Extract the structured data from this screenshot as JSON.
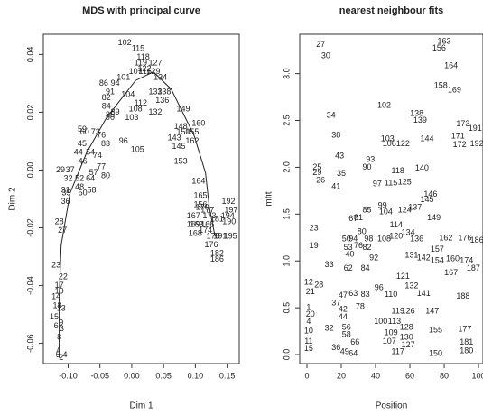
{
  "chart_data": [
    {
      "type": "scatter",
      "title": "MDS with principal curve",
      "x_label": "Dim 1",
      "y_label": "Dim 2",
      "xlim": [
        -0.139,
        0.169
      ],
      "ylim": [
        -0.067,
        0.047
      ],
      "xticks": [
        {
          "value": -0.1,
          "label": "-0.10"
        },
        -0.05,
        {
          "value": 0,
          "label": "0.00"
        },
        0.05,
        {
          "value": 0.1,
          "label": "0.10"
        },
        0.15
      ],
      "yticks": [
        -0.06,
        -0.04,
        -0.02,
        {
          "value": 0,
          "label": "0.00"
        },
        0.02,
        0.04
      ],
      "series": [
        {
          "color": "#222222",
          "labels": [
            "102",
            "115",
            "118",
            "119",
            "127",
            "122",
            "129",
            "134",
            "101",
            "107",
            "116",
            "86",
            "94",
            "133",
            "138",
            "91",
            "82",
            "104",
            "112",
            "136",
            "84",
            "108",
            "132",
            "149",
            "89",
            "103",
            "85",
            "90",
            "160",
            "148",
            "150",
            "155",
            "143",
            "162",
            "96",
            "59",
            "73",
            "60",
            "76",
            "83",
            "45",
            "105",
            "145",
            "153",
            "44",
            "54",
            "74",
            "46",
            "77",
            "80",
            "57",
            "52",
            "64",
            "58",
            "29",
            "37",
            "32",
            "31",
            "39",
            "36",
            "48",
            "50",
            "164",
            "165",
            "156",
            "170",
            "177",
            "169",
            "192",
            "197",
            "167",
            "173",
            "181",
            "194",
            "190",
            "163",
            "166",
            "168",
            "174",
            "178",
            "191",
            "195",
            "176",
            "182",
            "186",
            "28",
            "27",
            "23",
            "22",
            "17",
            "19",
            "14",
            "18",
            "13",
            "9",
            "6",
            "3",
            "8",
            "15",
            "7",
            "5",
            "2",
            "4"
          ],
          "x": [
            -0.011,
            0.01,
            0.018,
            0.014,
            0.037,
            0.02,
            0.034,
            0.045,
            -0.013,
            0.006,
            0.021,
            -0.044,
            -0.026,
            0.037,
            0.051,
            -0.034,
            -0.04,
            -0.006,
            0.014,
            0.048,
            -0.04,
            0.006,
            0.037,
            0.081,
            -0.026,
            0.0,
            -0.034,
            -0.034,
            0.105,
            0.077,
            0.081,
            0.095,
            0.067,
            0.095,
            -0.013,
            -0.078,
            -0.057,
            -0.074,
            -0.048,
            -0.041,
            -0.078,
            0.009,
            0.074,
            0.077,
            -0.084,
            -0.065,
            -0.054,
            -0.077,
            -0.048,
            -0.041,
            -0.06,
            -0.082,
            -0.065,
            -0.063,
            -0.112,
            -0.097,
            -0.1,
            -0.104,
            -0.103,
            -0.104,
            -0.082,
            -0.077,
            0.105,
            0.108,
            0.108,
            0.111,
            0.119,
            0.097,
            0.152,
            0.156,
            0.097,
            0.122,
            0.134,
            0.151,
            0.153,
            0.102,
            0.119,
            0.1,
            0.116,
            0.128,
            0.139,
            0.155,
            0.125,
            0.134,
            0.134,
            -0.114,
            -0.109,
            -0.119,
            -0.108,
            -0.114,
            -0.114,
            -0.119,
            -0.117,
            -0.111,
            -0.111,
            -0.119,
            -0.11,
            -0.114,
            -0.122,
            -0.116,
            -0.116,
            -0.111,
            -0.105
          ],
          "values": [
            0.044,
            0.042,
            0.039,
            0.037,
            0.037,
            0.035,
            0.034,
            0.032,
            0.032,
            0.034,
            0.034,
            0.03,
            0.03,
            0.027,
            0.027,
            0.027,
            0.025,
            0.026,
            0.023,
            0.024,
            0.022,
            0.021,
            0.02,
            0.021,
            0.02,
            0.018,
            0.019,
            0.018,
            0.016,
            0.015,
            0.013,
            0.013,
            0.011,
            0.01,
            0.01,
            0.014,
            0.013,
            0.013,
            0.012,
            0.009,
            0.009,
            0.007,
            0.008,
            0.003,
            0.006,
            0.006,
            0.005,
            0.003,
            0.001,
            -0.002,
            -0.001,
            -0.003,
            -0.003,
            -0.007,
            0.0,
            0.0,
            -0.003,
            -0.007,
            -0.008,
            -0.011,
            -0.006,
            -0.008,
            -0.004,
            -0.009,
            -0.012,
            -0.013,
            -0.014,
            -0.019,
            -0.011,
            -0.014,
            -0.016,
            -0.016,
            -0.017,
            -0.016,
            -0.018,
            -0.019,
            -0.019,
            -0.022,
            -0.021,
            -0.023,
            -0.023,
            -0.023,
            -0.026,
            -0.029,
            -0.031,
            -0.018,
            -0.021,
            -0.033,
            -0.037,
            -0.04,
            -0.042,
            -0.044,
            -0.047,
            -0.048,
            -0.053,
            -0.054,
            -0.055,
            -0.058,
            -0.051,
            -0.062,
            -0.064,
            -0.065,
            -0.064
          ]
        }
      ],
      "curve": {
        "color": "#222222",
        "x": [
          -0.114,
          -0.114,
          -0.111,
          -0.097,
          -0.071,
          -0.04,
          0.006,
          0.034,
          0.062,
          0.098,
          0.116,
          0.122,
          0.131
        ],
        "values": [
          -0.065,
          -0.044,
          -0.026,
          -0.008,
          0.006,
          0.018,
          0.031,
          0.034,
          0.028,
          0.012,
          -0.001,
          -0.013,
          -0.023
        ]
      }
    },
    {
      "type": "scatter",
      "title": "nearest neighbour fits",
      "x_label": "Position",
      "y_label": "mfit",
      "xlim": [
        -4.2,
        102.6
      ],
      "ylim": [
        -0.096,
        3.42
      ],
      "xticks": [
        0,
        20,
        40,
        60,
        80,
        100
      ],
      "yticks": [
        {
          "value": 0,
          "label": "0.0"
        },
        0.5,
        {
          "value": 1,
          "label": "1.0"
        },
        1.5,
        {
          "value": 2,
          "label": "2.0"
        },
        2.5,
        {
          "value": 3,
          "label": "3.0"
        }
      ],
      "series": [
        {
          "color": "#222222",
          "labels": [
            "27",
            "30",
            "163",
            "156",
            "164",
            "158",
            "169",
            "102",
            "138",
            "139",
            "173",
            "191",
            "171",
            "192",
            "172",
            "34",
            "38",
            "103",
            "106",
            "122",
            "144",
            "43",
            "93",
            "90",
            "118",
            "140",
            "25",
            "29",
            "26",
            "35",
            "41",
            "97",
            "115",
            "125",
            "146",
            "145",
            "99",
            "104",
            "124",
            "137",
            "85",
            "67",
            "81",
            "149",
            "23",
            "114",
            "80",
            "50",
            "94",
            "98",
            "108",
            "120",
            "134",
            "136",
            "162",
            "176",
            "186",
            "19",
            "53",
            "76",
            "82",
            "157",
            "40",
            "92",
            "131",
            "142",
            "154",
            "160",
            "174",
            "33",
            "62",
            "84",
            "167",
            "187",
            "121",
            "12",
            "28",
            "96",
            "132",
            "21",
            "47",
            "63",
            "83",
            "110",
            "141",
            "188",
            "37",
            "42",
            "78",
            "119",
            "126",
            "147",
            "1",
            "20",
            "44",
            "100",
            "113",
            "4",
            "32",
            "56",
            "128",
            "155",
            "177",
            "10",
            "58",
            "109",
            "130",
            "11",
            "66",
            "107",
            "127",
            "181",
            "15",
            "36",
            "49",
            "64",
            "117",
            "150",
            "180"
          ],
          "x": [
            8,
            11,
            80,
            77,
            84,
            78,
            86,
            45,
            64,
            66,
            91,
            98,
            88,
            99,
            89,
            14,
            17,
            47,
            48,
            56,
            70,
            19,
            37,
            35,
            53,
            67,
            6,
            6,
            8,
            20,
            17,
            41,
            49,
            57,
            72,
            70,
            44,
            46,
            57,
            63,
            35,
            27,
            30,
            74,
            4,
            52,
            32,
            23,
            27,
            36,
            45,
            52,
            59,
            64,
            81,
            92,
            99,
            4,
            24,
            30,
            35,
            76,
            25,
            39,
            61,
            68,
            76,
            85,
            93,
            13,
            24,
            34,
            84,
            97,
            56,
            1,
            7,
            42,
            61,
            2,
            21,
            27,
            34,
            49,
            68,
            91,
            17,
            21,
            31,
            53,
            59,
            73,
            1,
            2,
            21,
            43,
            51,
            1,
            13,
            23,
            58,
            75,
            92,
            1,
            23,
            49,
            58,
            1,
            28,
            48,
            59,
            93,
            1,
            17,
            22,
            27,
            53,
            75,
            93
          ],
          "values": [
            3.31,
            3.19,
            3.34,
            3.27,
            3.08,
            2.87,
            2.82,
            2.66,
            2.57,
            2.5,
            2.46,
            2.41,
            2.33,
            2.25,
            2.24,
            2.55,
            2.34,
            2.3,
            2.25,
            2.25,
            2.3,
            2.12,
            2.08,
            2.0,
            1.96,
            1.99,
            2.0,
            1.94,
            1.86,
            1.93,
            1.79,
            1.82,
            1.83,
            1.84,
            1.71,
            1.65,
            1.59,
            1.52,
            1.54,
            1.57,
            1.54,
            1.45,
            1.46,
            1.46,
            1.35,
            1.38,
            1.31,
            1.23,
            1.23,
            1.23,
            1.23,
            1.26,
            1.3,
            1.23,
            1.24,
            1.24,
            1.22,
            1.16,
            1.14,
            1.16,
            1.14,
            1.12,
            1.07,
            1.03,
            1.06,
            1.03,
            1.0,
            1.02,
            1.0,
            0.96,
            0.92,
            0.92,
            0.87,
            0.92,
            0.83,
            0.77,
            0.74,
            0.71,
            0.73,
            0.67,
            0.63,
            0.65,
            0.64,
            0.64,
            0.65,
            0.62,
            0.55,
            0.48,
            0.51,
            0.46,
            0.46,
            0.46,
            0.5,
            0.43,
            0.4,
            0.35,
            0.35,
            0.35,
            0.28,
            0.29,
            0.29,
            0.26,
            0.27,
            0.25,
            0.21,
            0.23,
            0.18,
            0.14,
            0.13,
            0.14,
            0.1,
            0.13,
            0.06,
            0.07,
            0.03,
            0.01,
            0.03,
            0.01,
            0.04
          ]
        }
      ]
    }
  ]
}
